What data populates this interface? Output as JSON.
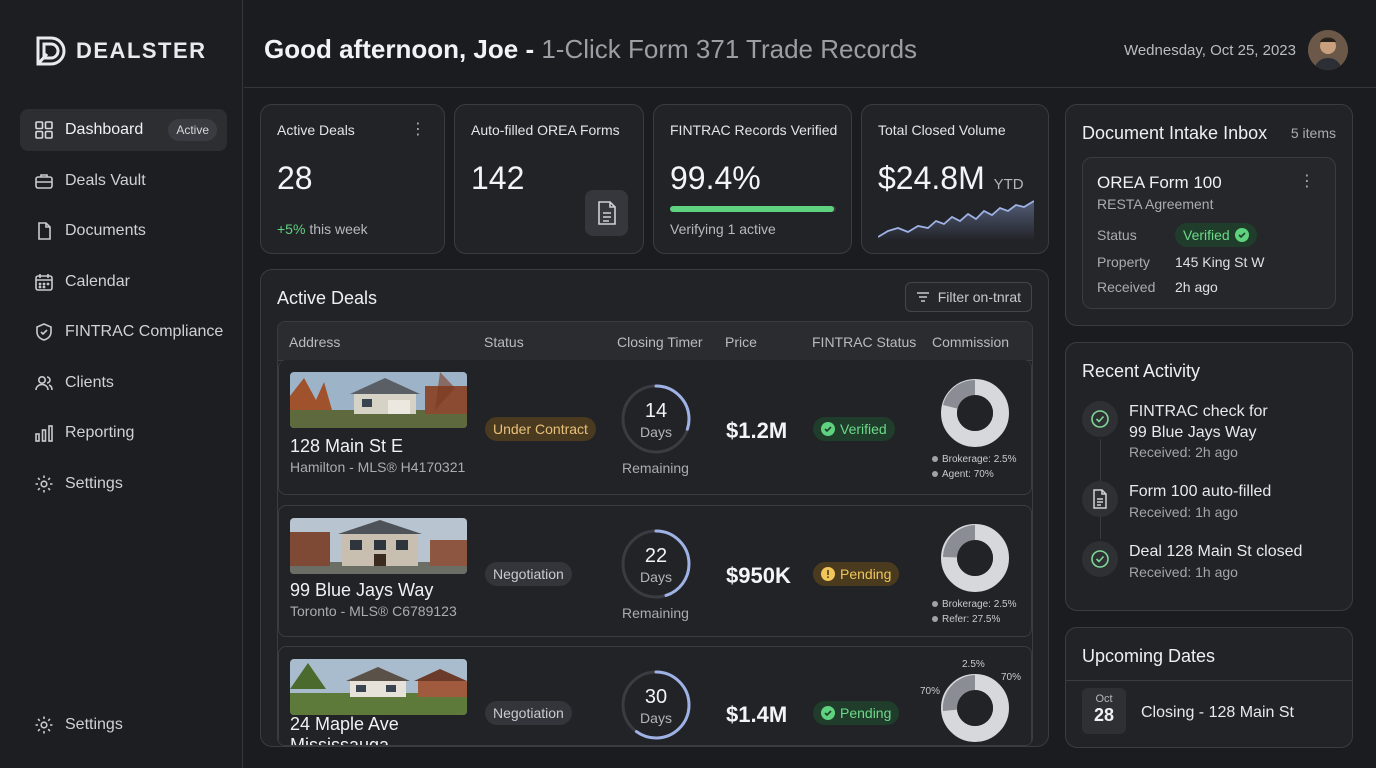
{
  "brand": {
    "name": "DEALSTER"
  },
  "sidebar": {
    "items": [
      {
        "label": "Dashboard",
        "icon": "grid-icon",
        "badge": "Active"
      },
      {
        "label": "Deals Vault",
        "icon": "briefcase-icon"
      },
      {
        "label": "Documents",
        "icon": "document-icon"
      },
      {
        "label": "Calendar",
        "icon": "calendar-icon"
      },
      {
        "label": "FINTRAC Compliance",
        "icon": "shield-icon"
      },
      {
        "label": "Clients",
        "icon": "users-icon"
      },
      {
        "label": "Reporting",
        "icon": "bar-chart-icon"
      },
      {
        "label": "Settings",
        "icon": "gear-icon"
      }
    ],
    "bottom": {
      "label": "Settings",
      "icon": "gear-icon"
    }
  },
  "header": {
    "greeting": "Good afternoon, Joe -",
    "subtitle": "1-Click Form 371 Trade Records",
    "date": "Wednesday, Oct 25, 2023"
  },
  "stats": [
    {
      "title": "Active Deals",
      "value": "28",
      "delta": "+5%",
      "sub": "this week"
    },
    {
      "title": "Auto-filled OREA Forms",
      "value": "142"
    },
    {
      "title": "FINTRAC Records Verified",
      "value": "99.4%",
      "progress": 0.99,
      "sub": "Verifying 1 active"
    },
    {
      "title": "Total Closed Volume",
      "value": "$24.8M",
      "unit": "YTD"
    }
  ],
  "deals": {
    "title": "Active Deals",
    "filter_label": "Filter on-tnrat",
    "columns": [
      "Address",
      "Status",
      "Closing Timer",
      "Price",
      "FINTRAC Status",
      "Commission"
    ],
    "rows": [
      {
        "address": "128 Main St E",
        "location": "Hamilton - MLS® H4170321",
        "status": "Under Contract",
        "days": "14",
        "days_label": "Days",
        "remaining": "Remaining",
        "timer_fraction": 0.3,
        "price": "$1.2M",
        "fintrac": "Verified",
        "legend": [
          "Brokerage: 2.5%",
          "Agent: 70%"
        ]
      },
      {
        "address": "99 Blue Jays Way",
        "location": "Toronto - MLS® C6789123",
        "status": "Negotiation",
        "days": "22",
        "days_label": "Days",
        "remaining": "Remaining",
        "timer_fraction": 0.45,
        "price": "$950K",
        "fintrac": "Pending",
        "legend": [
          "Brokerage: 2.5%",
          "Refer: 27.5%"
        ]
      },
      {
        "address": "24 Maple Ave",
        "location": "Mississauga",
        "status": "Negotiation",
        "days": "30",
        "days_label": "Days",
        "remaining": "",
        "timer_fraction": 0.6,
        "price": "$1.4M",
        "fintrac": "Pending",
        "labels": [
          "2.5%",
          "70%",
          "70%"
        ]
      }
    ]
  },
  "inbox": {
    "title": "Document Intake Inbox",
    "count": "5 items",
    "card": {
      "title": "OREA Form 100",
      "subtitle": "RESTA Agreement",
      "status_label": "Status",
      "status": "Verified",
      "property_label": "Property",
      "property": "145 King St W",
      "received_label": "Received",
      "received": "2h ago"
    }
  },
  "activity": {
    "title": "Recent Activity",
    "items": [
      {
        "text1": "FINTRAC check for",
        "text2": "99 Blue Jays Way",
        "time": "Received: 2h ago",
        "icon": "check-circle-icon"
      },
      {
        "text1": "Form 100 auto-filled",
        "text2": "",
        "time": "Received: 1h ago",
        "icon": "document-icon"
      },
      {
        "text1": "Deal 128 Main St closed",
        "text2": "",
        "time": "Received: 1h ago",
        "icon": "check-circle-icon"
      }
    ]
  },
  "upcoming": {
    "title": "Upcoming Dates",
    "items": [
      {
        "month": "Oct",
        "day": "28",
        "label": "Closing - 128 Main St"
      }
    ]
  },
  "colors": {
    "accent_green": "#5fd27f",
    "bg": "#1b1c1f",
    "card": "#222327"
  }
}
